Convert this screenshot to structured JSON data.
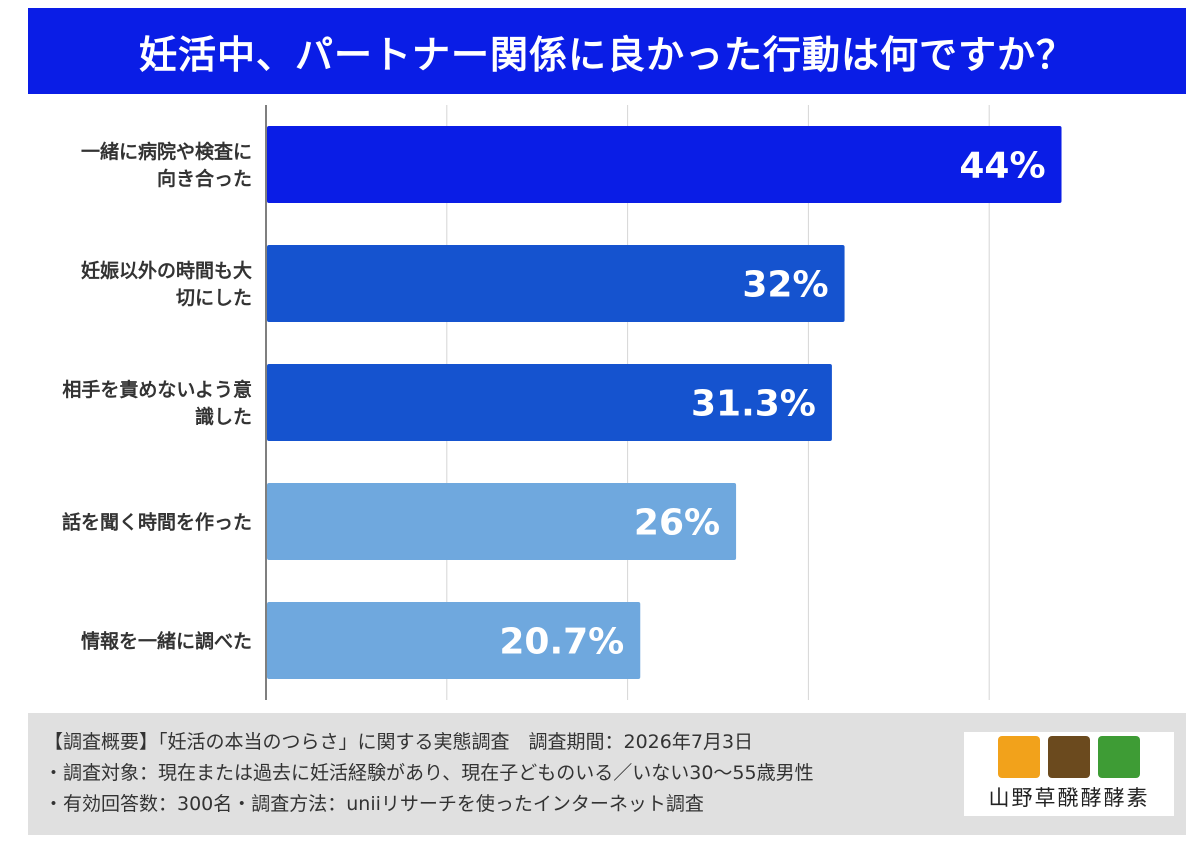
{
  "title": "妊活中、パートナー関係に良かった行動は何ですか？",
  "chart_data": {
    "type": "bar",
    "orientation": "horizontal",
    "categories": [
      [
        "一緒に病院や検査に",
        "向き合った"
      ],
      [
        "妊娠以外の時間も大",
        "切にした"
      ],
      [
        "相手を責めないよう意",
        "識した"
      ],
      [
        "話を聞く時間を作った"
      ],
      [
        "情報を一緒に調べた"
      ]
    ],
    "values": [
      44,
      32,
      31.3,
      26,
      20.7
    ],
    "value_labels": [
      "44%",
      "32%",
      "31.3%",
      "26%",
      "20.7%"
    ],
    "bar_colors": [
      "#0a1de6",
      "#1553cf",
      "#1553cf",
      "#6fa8de",
      "#6fa8de"
    ],
    "xlim": [
      0,
      50
    ],
    "grid": true
  },
  "footer": {
    "line1": "【調査概要】「妊活の本当のつらさ」に関する実態調査　調査期間：2026年7月3日",
    "line2": "・調査対象：現在または過去に妊活経験があり、現在子どものいる／いない30〜55歳男性",
    "line3": "・有効回答数：300名・調査方法：uniiリサーチを使ったインターネット調査"
  },
  "logo": {
    "text": "山野草醗酵酵素",
    "icon_colors": [
      "#f2a21b",
      "#6b4a1e",
      "#3e9c35"
    ]
  }
}
